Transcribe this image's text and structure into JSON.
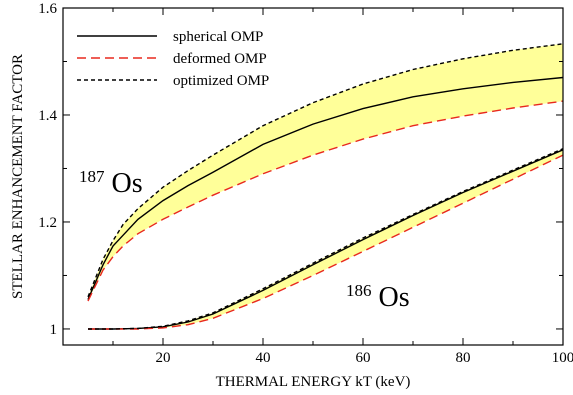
{
  "chart_data": {
    "type": "line",
    "title": "",
    "xlabel": "THERMAL ENERGY  kT (keV)",
    "ylabel": "STELLAR ENHANCEMENT FACTOR",
    "xlim": [
      0,
      100
    ],
    "ylim": [
      0.97,
      1.6
    ],
    "xticks": [
      20,
      40,
      60,
      80,
      100
    ],
    "xtick_labels": [
      "20",
      "40",
      "60",
      "80",
      "100"
    ],
    "yticks": [
      1.0,
      1.2,
      1.4,
      1.6
    ],
    "ytick_labels": [
      "1",
      "1.2",
      "1.4",
      "1.6"
    ],
    "grid": false,
    "legend_position": "top-left",
    "band_color": "#ffff99",
    "annotations": [
      {
        "id": "os187",
        "mass": "187",
        "element": "Os"
      },
      {
        "id": "os186",
        "mass": "186",
        "element": "Os"
      }
    ],
    "series": [
      {
        "name": "spherical OMP",
        "group": "187Os",
        "style": "solid",
        "color": "#000000",
        "x": [
          5,
          8,
          10,
          12,
          15,
          20,
          25,
          30,
          40,
          50,
          60,
          70,
          80,
          90,
          100
        ],
        "y": [
          1.055,
          1.12,
          1.155,
          1.175,
          1.205,
          1.24,
          1.268,
          1.293,
          1.345,
          1.383,
          1.412,
          1.434,
          1.449,
          1.461,
          1.47
        ]
      },
      {
        "name": "deformed OMP",
        "group": "187Os",
        "style": "dashed",
        "color": "#e8281e",
        "x": [
          5,
          8,
          10,
          12,
          15,
          20,
          25,
          30,
          40,
          50,
          60,
          70,
          80,
          90,
          100
        ],
        "y": [
          1.052,
          1.11,
          1.135,
          1.155,
          1.178,
          1.205,
          1.228,
          1.25,
          1.29,
          1.325,
          1.355,
          1.38,
          1.398,
          1.413,
          1.426
        ]
      },
      {
        "name": "optimized OMP",
        "group": "187Os",
        "style": "dotted",
        "color": "#000000",
        "x": [
          5,
          8,
          10,
          12,
          15,
          20,
          25,
          30,
          40,
          50,
          60,
          70,
          80,
          90,
          100
        ],
        "y": [
          1.06,
          1.13,
          1.165,
          1.195,
          1.225,
          1.265,
          1.296,
          1.325,
          1.38,
          1.423,
          1.458,
          1.485,
          1.505,
          1.521,
          1.533
        ]
      },
      {
        "name": "spherical OMP",
        "group": "186Os",
        "style": "solid",
        "color": "#000000",
        "x": [
          5,
          10,
          15,
          20,
          25,
          30,
          40,
          50,
          60,
          70,
          80,
          90,
          100
        ],
        "y": [
          1.0,
          1.0,
          1.001,
          1.004,
          1.013,
          1.028,
          1.072,
          1.12,
          1.167,
          1.212,
          1.255,
          1.295,
          1.335
        ]
      },
      {
        "name": "deformed OMP",
        "group": "186Os",
        "style": "dashed",
        "color": "#e8281e",
        "x": [
          5,
          10,
          15,
          20,
          25,
          30,
          40,
          50,
          60,
          70,
          80,
          90,
          100
        ],
        "y": [
          1.0,
          1.0,
          1.0,
          1.002,
          1.008,
          1.02,
          1.057,
          1.1,
          1.145,
          1.19,
          1.235,
          1.28,
          1.325
        ]
      },
      {
        "name": "optimized OMP",
        "group": "186Os",
        "style": "dotted",
        "color": "#000000",
        "x": [
          5,
          10,
          15,
          20,
          25,
          30,
          40,
          50,
          60,
          70,
          80,
          90,
          100
        ],
        "y": [
          1.0,
          1.0,
          1.001,
          1.005,
          1.015,
          1.03,
          1.075,
          1.123,
          1.17,
          1.214,
          1.257,
          1.297,
          1.337
        ]
      }
    ],
    "legend": [
      {
        "label": "spherical OMP",
        "style": "solid",
        "color": "#000000"
      },
      {
        "label": "deformed OMP",
        "style": "dashed",
        "color": "#e8281e"
      },
      {
        "label": "optimized OMP",
        "style": "dotted",
        "color": "#000000"
      }
    ]
  }
}
